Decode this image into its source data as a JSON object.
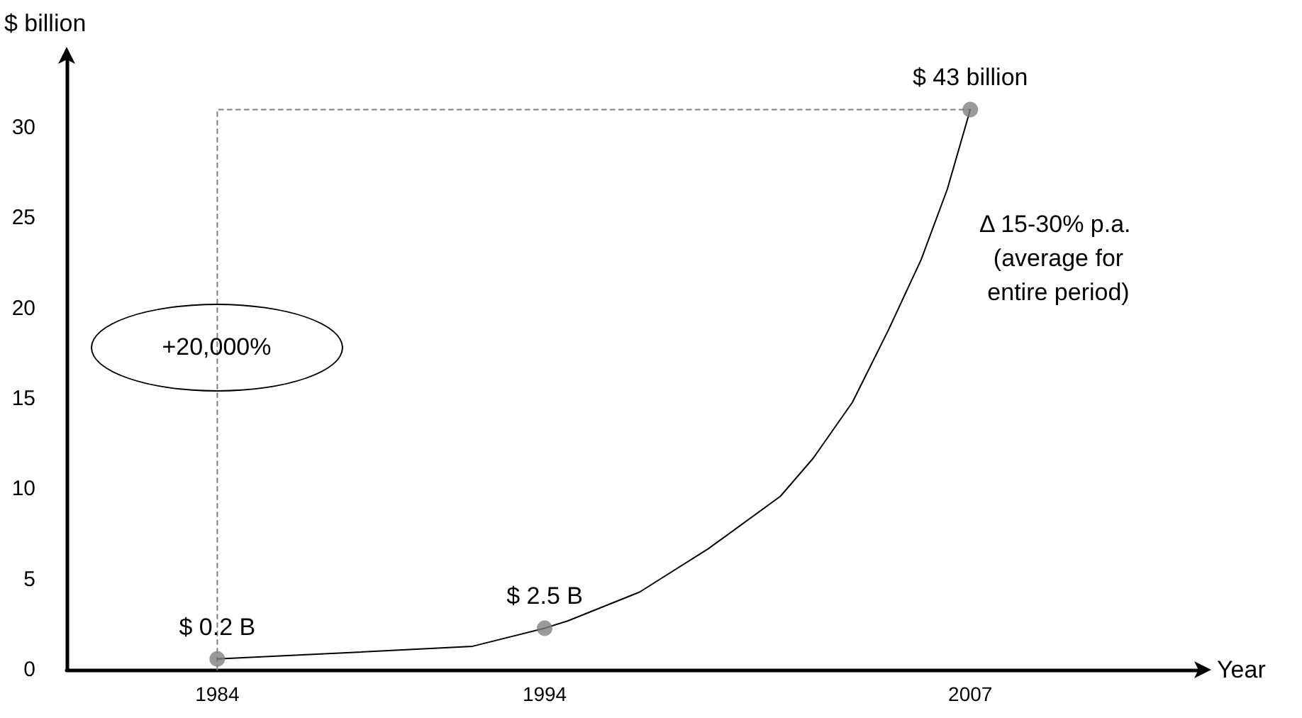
{
  "chart_data": {
    "type": "line",
    "xlabel": "Year",
    "ylabel": "$ billion",
    "xlim": [
      1979.4,
      2014.1
    ],
    "xticks": [
      1984,
      1994,
      2007
    ],
    "ylim": [
      0,
      34
    ],
    "yticks": [
      0,
      5,
      10,
      15,
      20,
      25,
      30
    ],
    "grid": false,
    "series": [
      {
        "color": "#808080",
        "line_style": "dashed",
        "marker": "none",
        "x": [
          1984,
          1984,
          2007
        ],
        "values": [
          0,
          31,
          31
        ]
      },
      {
        "color": "#000000",
        "line_style": "solid",
        "marker": "none",
        "x": [
          1984,
          1987.5,
          1991.8,
          1994,
          1994.7,
          1996.9,
          1999,
          2001.2,
          2002.2,
          2003.4,
          2004.5,
          2005.5,
          2006.3,
          2007
        ],
        "values": [
          0.6,
          0.9,
          1.3,
          2.3,
          2.7,
          4.3,
          6.7,
          9.6,
          11.7,
          14.8,
          18.8,
          22.7,
          26.6,
          31
        ]
      },
      {
        "type": "scatter",
        "color": "#808080",
        "marker": "circle",
        "x": [
          1984,
          1994,
          2007
        ],
        "values": [
          0.6,
          2.3,
          31
        ]
      }
    ],
    "annotations": [
      {
        "text": "$ 0.2 B",
        "x": 1984,
        "y": 0.6
      },
      {
        "text": "$ 2.5 B",
        "x": 1994,
        "y": 2.3
      },
      {
        "text": "$ 43 billion",
        "x": 2007,
        "y": 31
      },
      "+20,000%",
      "Δ 15-30% p.a.\n (average for\n entire period)"
    ]
  }
}
